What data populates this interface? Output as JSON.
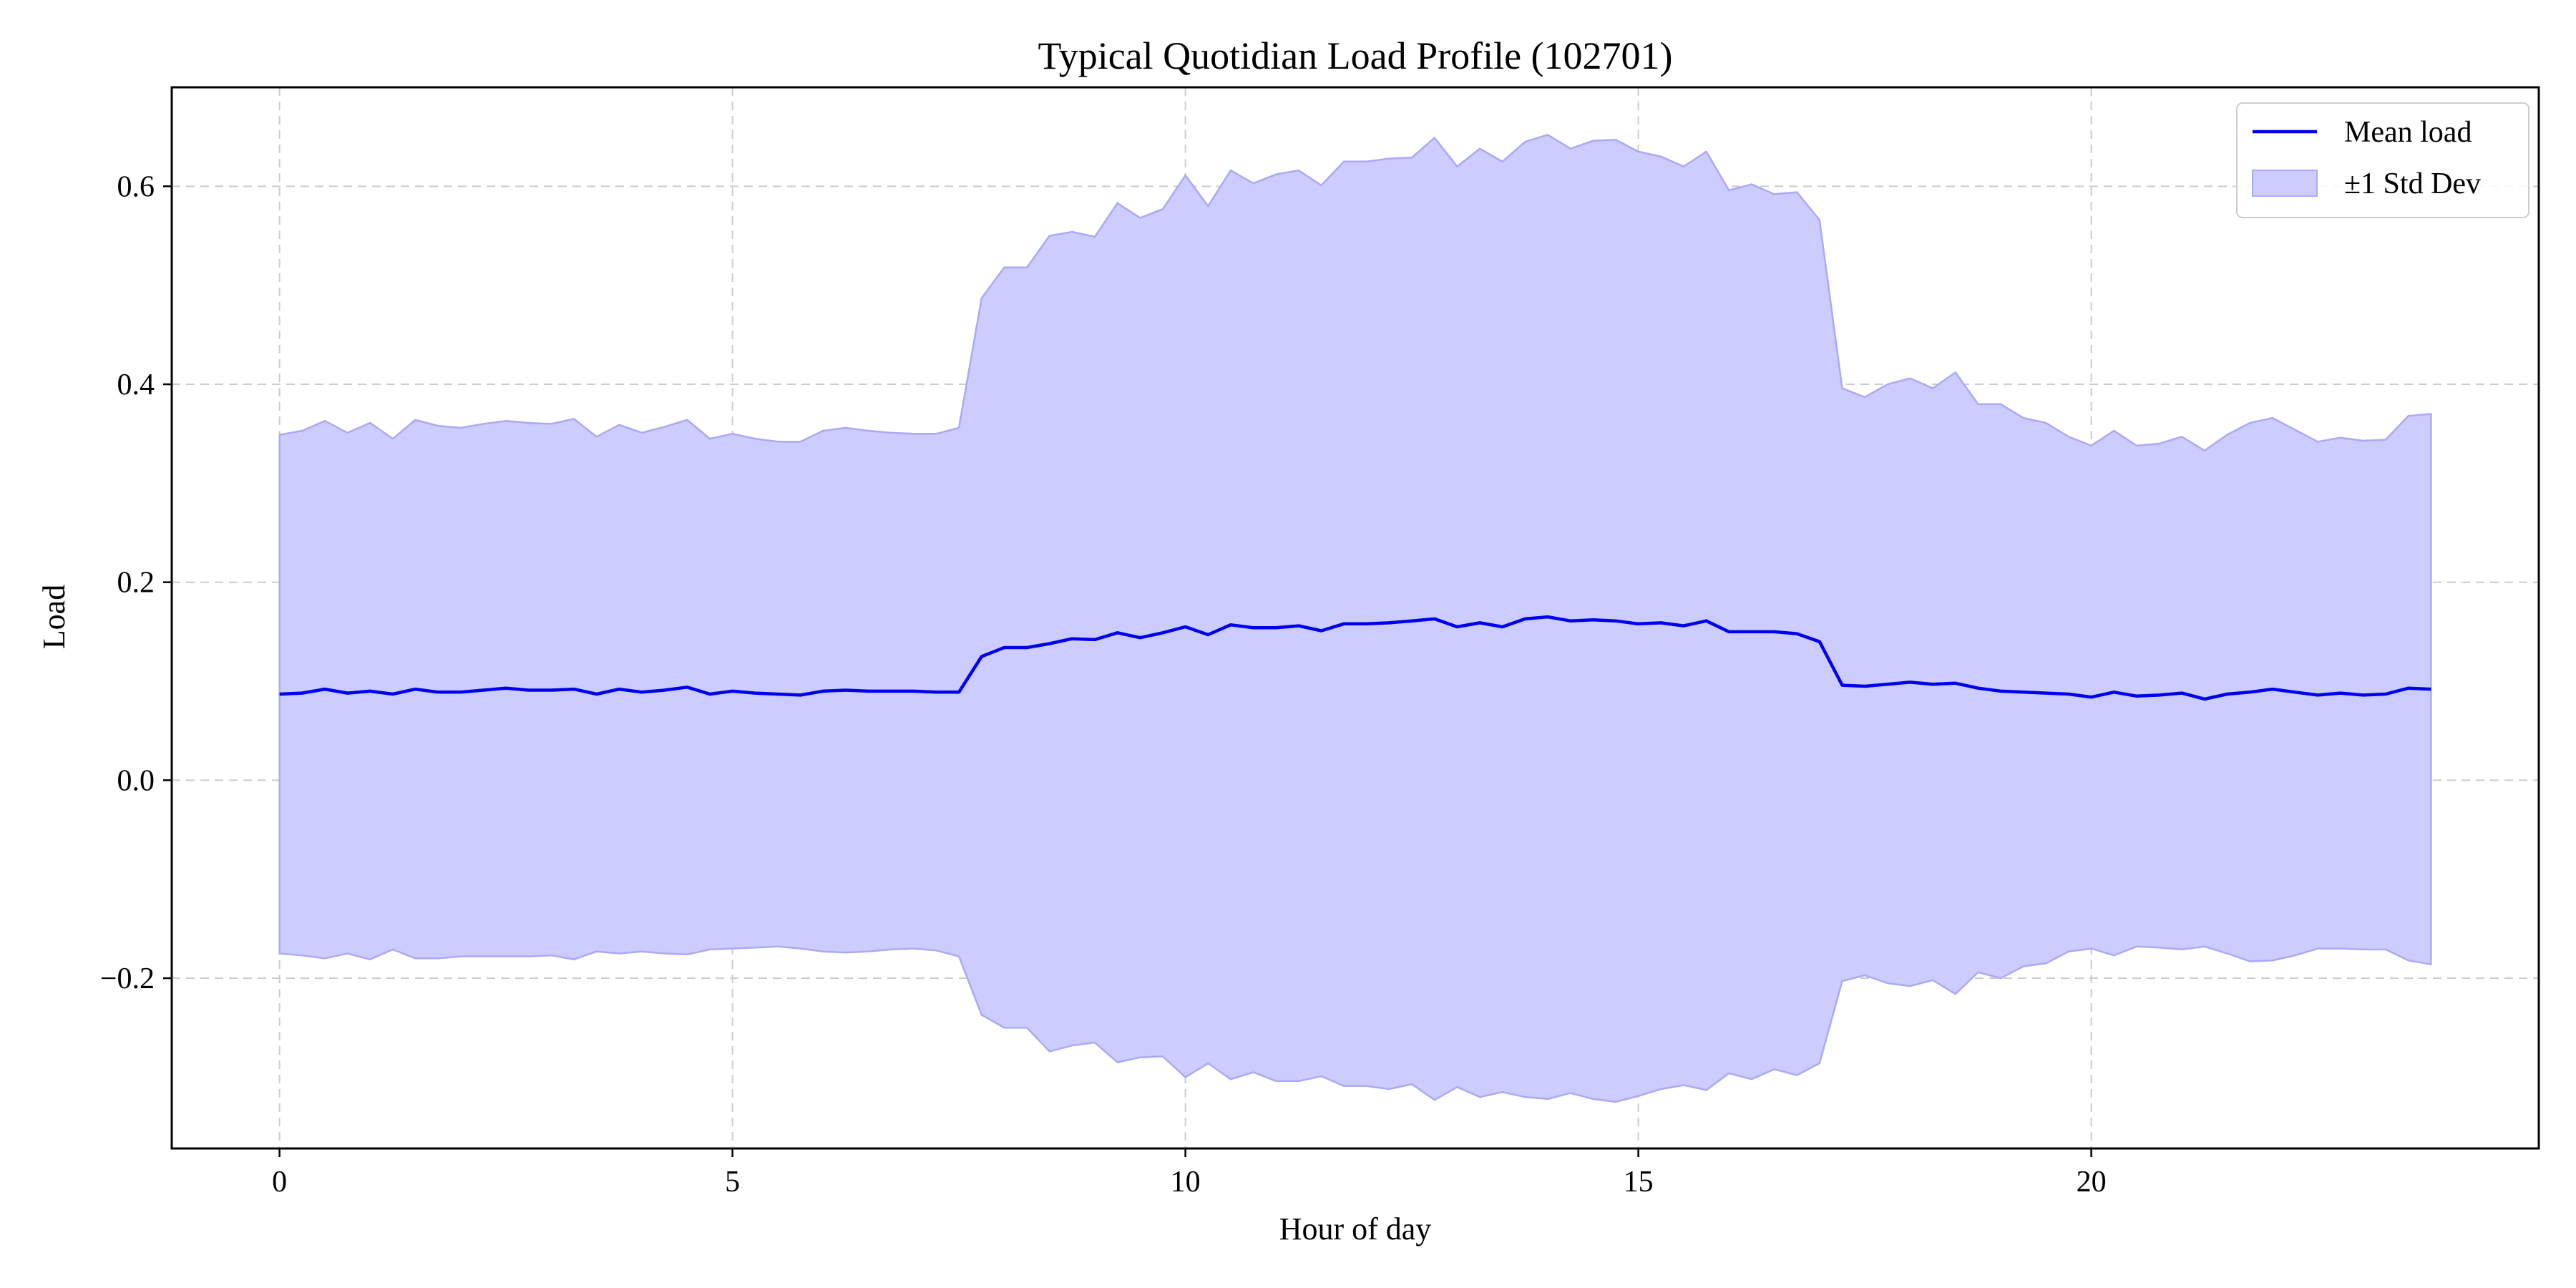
{
  "chart_data": {
    "type": "line",
    "title": "Typical Quotidian Load Profile (102701)",
    "xlabel": "Hour of day",
    "ylabel": "Load",
    "xlim": [
      -1.19,
      24.94
    ],
    "ylim": [
      -0.372,
      0.7
    ],
    "xticks": [
      0,
      5,
      10,
      15,
      20
    ],
    "yticks": [
      -0.2,
      0.0,
      0.2,
      0.4,
      0.6
    ],
    "ytick_labels": [
      "−0.2",
      "0.0",
      "0.2",
      "0.4",
      "0.6"
    ],
    "grid": true,
    "legend_position": "top-right",
    "colors": {
      "mean": "#0000ee",
      "band_fill": "#ccccff",
      "band_edge": "#aaaaf5",
      "grid": "#cccccc"
    },
    "x": [
      0,
      0.25,
      0.5,
      0.75,
      1,
      1.25,
      1.5,
      1.75,
      2,
      2.25,
      2.5,
      2.75,
      3,
      3.25,
      3.5,
      3.75,
      4,
      4.25,
      4.5,
      4.75,
      5,
      5.25,
      5.5,
      5.75,
      6,
      6.25,
      6.5,
      6.75,
      7,
      7.25,
      7.5,
      7.75,
      8,
      8.25,
      8.5,
      8.75,
      9,
      9.25,
      9.5,
      9.75,
      10,
      10.25,
      10.5,
      10.75,
      11,
      11.25,
      11.5,
      11.75,
      12,
      12.25,
      12.5,
      12.75,
      13,
      13.25,
      13.5,
      13.75,
      14,
      14.25,
      14.5,
      14.75,
      15,
      15.25,
      15.5,
      15.75,
      16,
      16.25,
      16.5,
      16.75,
      17,
      17.25,
      17.5,
      17.75,
      18,
      18.25,
      18.5,
      18.75,
      19,
      19.25,
      19.5,
      19.75,
      20,
      20.25,
      20.5,
      20.75,
      21,
      21.25,
      21.5,
      21.75,
      22,
      22.25,
      22.5,
      22.75,
      23,
      23.25,
      23.5,
      23.75
    ],
    "series": [
      {
        "name": "Mean load",
        "values": [
          0.087,
          0.088,
          0.092,
          0.088,
          0.09,
          0.087,
          0.092,
          0.089,
          0.089,
          0.091,
          0.093,
          0.091,
          0.091,
          0.092,
          0.087,
          0.092,
          0.089,
          0.091,
          0.094,
          0.087,
          0.09,
          0.088,
          0.087,
          0.086,
          0.09,
          0.091,
          0.09,
          0.09,
          0.09,
          0.089,
          0.089,
          0.125,
          0.134,
          0.134,
          0.138,
          0.143,
          0.142,
          0.149,
          0.144,
          0.149,
          0.155,
          0.147,
          0.157,
          0.154,
          0.154,
          0.156,
          0.151,
          0.158,
          0.158,
          0.159,
          0.161,
          0.163,
          0.155,
          0.159,
          0.155,
          0.163,
          0.165,
          0.161,
          0.162,
          0.161,
          0.158,
          0.159,
          0.156,
          0.161,
          0.15,
          0.15,
          0.15,
          0.148,
          0.14,
          0.096,
          0.095,
          0.097,
          0.099,
          0.097,
          0.098,
          0.093,
          0.09,
          0.089,
          0.088,
          0.087,
          0.084,
          0.089,
          0.085,
          0.086,
          0.088,
          0.082,
          0.087,
          0.089,
          0.092,
          0.089,
          0.086,
          0.088,
          0.086,
          0.087,
          0.093,
          0.092
        ]
      },
      {
        "name": "±1 Std Dev",
        "upper": [
          0.349,
          0.353,
          0.363,
          0.351,
          0.361,
          0.345,
          0.364,
          0.358,
          0.356,
          0.36,
          0.363,
          0.361,
          0.36,
          0.365,
          0.347,
          0.359,
          0.351,
          0.357,
          0.364,
          0.345,
          0.35,
          0.345,
          0.342,
          0.342,
          0.353,
          0.356,
          0.353,
          0.351,
          0.35,
          0.35,
          0.356,
          0.487,
          0.518,
          0.518,
          0.55,
          0.554,
          0.549,
          0.583,
          0.568,
          0.577,
          0.611,
          0.58,
          0.616,
          0.603,
          0.612,
          0.616,
          0.601,
          0.625,
          0.625,
          0.628,
          0.629,
          0.649,
          0.62,
          0.638,
          0.625,
          0.645,
          0.652,
          0.638,
          0.646,
          0.647,
          0.635,
          0.63,
          0.62,
          0.635,
          0.596,
          0.602,
          0.592,
          0.594,
          0.566,
          0.396,
          0.387,
          0.4,
          0.406,
          0.396,
          0.412,
          0.38,
          0.38,
          0.366,
          0.361,
          0.347,
          0.338,
          0.353,
          0.338,
          0.34,
          0.347,
          0.333,
          0.349,
          0.361,
          0.366,
          0.354,
          0.342,
          0.346,
          0.343,
          0.344,
          0.368,
          0.37
        ],
        "lower": [
          -0.175,
          -0.177,
          -0.18,
          -0.175,
          -0.181,
          -0.171,
          -0.18,
          -0.18,
          -0.178,
          -0.178,
          -0.178,
          -0.178,
          -0.177,
          -0.181,
          -0.173,
          -0.175,
          -0.173,
          -0.175,
          -0.176,
          -0.171,
          -0.17,
          -0.169,
          -0.168,
          -0.17,
          -0.173,
          -0.174,
          -0.173,
          -0.171,
          -0.17,
          -0.172,
          -0.178,
          -0.237,
          -0.25,
          -0.25,
          -0.274,
          -0.268,
          -0.265,
          -0.285,
          -0.28,
          -0.279,
          -0.3,
          -0.286,
          -0.302,
          -0.295,
          -0.304,
          -0.304,
          -0.299,
          -0.309,
          -0.309,
          -0.312,
          -0.307,
          -0.323,
          -0.31,
          -0.32,
          -0.315,
          -0.32,
          -0.322,
          -0.316,
          -0.322,
          -0.325,
          -0.319,
          -0.312,
          -0.308,
          -0.313,
          -0.296,
          -0.302,
          -0.292,
          -0.298,
          -0.286,
          -0.203,
          -0.197,
          -0.205,
          -0.208,
          -0.202,
          -0.216,
          -0.194,
          -0.2,
          -0.188,
          -0.185,
          -0.173,
          -0.17,
          -0.177,
          -0.168,
          -0.169,
          -0.171,
          -0.168,
          -0.175,
          -0.183,
          -0.182,
          -0.177,
          -0.17,
          -0.17,
          -0.171,
          -0.171,
          -0.182,
          -0.186
        ]
      }
    ]
  }
}
